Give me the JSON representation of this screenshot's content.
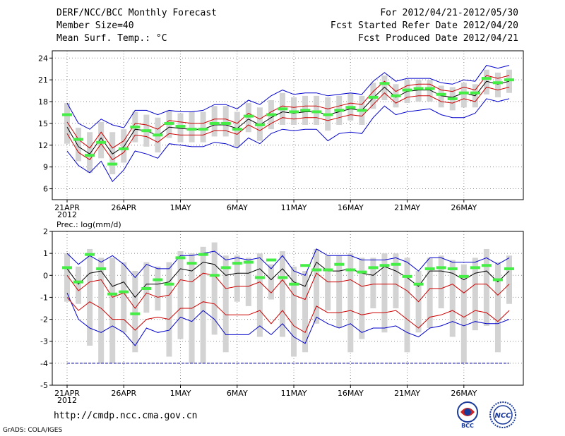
{
  "header": {
    "title_left_1": "DERF/NCC/BCC Monthly Forecast",
    "title_left_2": "Member Size=40",
    "title_left_3": "Mean Surf. Temp.: °C",
    "title_right_1": "For 2012/04/21-2012/05/30",
    "title_right_2": "Fcst Started Refer Date 2012/04/20",
    "title_right_3": "Fcst Produced Date 2012/04/21"
  },
  "footer": {
    "url": "http://cmdp.ncc.cma.gov.cn",
    "credit": "GrADS: COLA/IGES",
    "logo_left": "BCC",
    "logo_right": "NCC"
  },
  "colors": {
    "grid": "#888888",
    "box": "#d3d3d3",
    "mean": "#000000",
    "inner_band": "#cc0000",
    "outer_band": "#0000cc",
    "observed": "#44ee44",
    "ref_line": "#0000aa"
  },
  "chart_data": [
    {
      "type": "box",
      "title": "Mean Surf. Temp.: °C",
      "x": [
        1,
        2,
        3,
        4,
        5,
        6,
        7,
        8,
        9,
        10,
        11,
        12,
        13,
        14,
        15,
        16,
        17,
        18,
        19,
        20,
        21,
        22,
        23,
        24,
        25,
        26,
        27,
        28,
        29,
        30,
        31,
        32,
        33,
        34,
        35,
        36,
        37,
        38,
        39,
        40
      ],
      "x_tick_labels": [
        "21APR\n2012",
        "26APR",
        "1MAY",
        "6MAY",
        "11MAY",
        "16MAY",
        "21MAY",
        "26MAY"
      ],
      "x_tick_positions": [
        1,
        6,
        11,
        16,
        21,
        26,
        31,
        36
      ],
      "ylim": [
        4.5,
        25
      ],
      "y_ticks": [
        6,
        9,
        12,
        15,
        18,
        21,
        24
      ],
      "series": [
        {
          "name": "mean",
          "values": [
            14.5,
            11.8,
            10.8,
            13.0,
            10.8,
            11.8,
            14.2,
            14.0,
            13.3,
            14.5,
            14.3,
            14.2,
            14.2,
            14.8,
            14.8,
            14.3,
            15.6,
            14.8,
            15.8,
            16.6,
            16.4,
            16.6,
            16.6,
            16.2,
            16.6,
            17.0,
            16.8,
            18.5,
            20.0,
            18.6,
            19.4,
            19.6,
            19.6,
            18.8,
            18.6,
            19.2,
            18.8,
            20.8,
            20.4,
            20.8
          ]
        },
        {
          "name": "upper_inner",
          "values": [
            15.2,
            12.8,
            11.6,
            13.8,
            11.6,
            12.6,
            15.0,
            14.8,
            14.2,
            15.4,
            15.2,
            15.0,
            15.0,
            15.6,
            15.6,
            15.0,
            16.4,
            15.6,
            16.6,
            17.4,
            17.2,
            17.4,
            17.4,
            17.0,
            17.4,
            17.8,
            17.6,
            19.4,
            20.8,
            19.4,
            20.2,
            20.4,
            20.4,
            19.6,
            19.4,
            20.0,
            19.6,
            21.6,
            21.2,
            21.6
          ]
        },
        {
          "name": "lower_inner",
          "values": [
            13.6,
            11.0,
            10.0,
            12.2,
            10.0,
            11.0,
            13.4,
            13.2,
            12.4,
            13.6,
            13.4,
            13.4,
            13.4,
            14.0,
            14.0,
            13.5,
            14.8,
            14.0,
            15.0,
            15.8,
            15.6,
            15.8,
            15.8,
            15.4,
            15.8,
            16.2,
            16.0,
            17.6,
            19.2,
            17.8,
            18.6,
            18.8,
            18.8,
            18.0,
            17.8,
            18.4,
            18.0,
            20.0,
            19.6,
            20.0
          ]
        },
        {
          "name": "upper_outer",
          "values": [
            17.8,
            15.0,
            14.2,
            15.6,
            14.8,
            14.4,
            16.8,
            16.8,
            16.2,
            16.8,
            16.6,
            16.6,
            16.8,
            17.6,
            17.6,
            17.0,
            18.2,
            17.6,
            18.8,
            19.6,
            19.0,
            19.2,
            19.2,
            18.8,
            19.0,
            19.2,
            19.0,
            20.8,
            22.0,
            20.8,
            21.2,
            21.2,
            21.2,
            20.6,
            20.4,
            21.0,
            20.8,
            23.0,
            22.6,
            23.0
          ]
        },
        {
          "name": "lower_outer",
          "values": [
            11.2,
            9.2,
            8.2,
            9.8,
            7.0,
            8.6,
            11.2,
            10.8,
            10.2,
            12.2,
            12.0,
            11.8,
            11.8,
            12.4,
            12.2,
            11.6,
            13.0,
            12.2,
            13.6,
            14.2,
            14.0,
            14.2,
            14.2,
            12.6,
            13.6,
            13.8,
            13.6,
            15.8,
            17.4,
            16.2,
            16.6,
            16.8,
            17.0,
            16.2,
            15.8,
            15.8,
            16.4,
            18.4,
            18.0,
            18.4
          ]
        },
        {
          "name": "box_high",
          "values": [
            17.8,
            14.4,
            13.8,
            15.2,
            13.8,
            14.2,
            16.6,
            16.2,
            15.8,
            16.8,
            16.4,
            16.6,
            16.6,
            17.4,
            17.4,
            16.6,
            17.8,
            17.2,
            18.2,
            19.2,
            18.6,
            18.8,
            18.8,
            18.6,
            18.8,
            19.2,
            18.8,
            20.6,
            21.6,
            20.4,
            21.0,
            21.0,
            21.0,
            20.2,
            20.0,
            20.6,
            20.4,
            22.4,
            22.0,
            22.4
          ]
        },
        {
          "name": "box_low",
          "values": [
            12.2,
            9.8,
            8.2,
            10.2,
            8.0,
            9.6,
            12.4,
            11.8,
            11.0,
            13.0,
            12.4,
            12.4,
            12.4,
            13.2,
            13.2,
            11.8,
            13.8,
            12.6,
            14.2,
            14.8,
            14.8,
            14.8,
            14.8,
            14.0,
            14.8,
            15.4,
            14.8,
            17.0,
            18.2,
            17.2,
            17.8,
            18.0,
            18.0,
            17.2,
            16.8,
            17.2,
            17.2,
            19.0,
            18.6,
            19.2
          ]
        },
        {
          "name": "observed",
          "values": [
            16.2,
            12.8,
            10.6,
            12.4,
            9.4,
            11.5,
            14.5,
            14.0,
            13.4,
            15.0,
            14.6,
            14.2,
            14.2,
            15.0,
            15.0,
            14.2,
            16.0,
            14.8,
            16.2,
            17.0,
            16.6,
            16.8,
            16.6,
            16.2,
            16.8,
            17.2,
            16.8,
            18.6,
            20.5,
            18.8,
            19.6,
            19.8,
            19.8,
            19.0,
            18.4,
            19.2,
            19.2,
            21.2,
            20.6,
            21.0
          ]
        }
      ]
    },
    {
      "type": "box",
      "title": "Prec.: log(mm/d)",
      "x": [
        1,
        2,
        3,
        4,
        5,
        6,
        7,
        8,
        9,
        10,
        11,
        12,
        13,
        14,
        15,
        16,
        17,
        18,
        19,
        20,
        21,
        22,
        23,
        24,
        25,
        26,
        27,
        28,
        29,
        30,
        31,
        32,
        33,
        34,
        35,
        36,
        37,
        38,
        39,
        40
      ],
      "x_tick_labels": [
        "21APR\n2012",
        "26APR",
        "1MAY",
        "6MAY",
        "11MAY",
        "16MAY",
        "21MAY",
        "26MAY"
      ],
      "x_tick_positions": [
        1,
        6,
        11,
        16,
        21,
        26,
        31,
        36
      ],
      "ylim": [
        -5,
        2
      ],
      "y_ticks": [
        -5,
        -4,
        -3,
        -2,
        -1,
        0,
        1,
        2
      ],
      "reference_line": -4,
      "series": [
        {
          "name": "mean",
          "values": [
            0.3,
            -0.4,
            0.1,
            0.2,
            -0.5,
            -0.3,
            -1.0,
            -0.4,
            -0.4,
            -0.3,
            0.3,
            0.2,
            0.6,
            0.5,
            0.0,
            0.1,
            0.1,
            0.3,
            -0.2,
            0.3,
            -0.3,
            -0.5,
            0.6,
            0.2,
            0.2,
            0.3,
            0.1,
            0.0,
            0.4,
            0.2,
            -0.1,
            -0.5,
            0.2,
            0.2,
            0.1,
            -0.2,
            0.1,
            0.2,
            -0.3,
            0.2
          ]
        },
        {
          "name": "upper_inner",
          "values": [
            0.0,
            -0.7,
            -0.3,
            -0.2,
            -1.0,
            -0.8,
            -1.5,
            -0.8,
            -1.0,
            -0.9,
            -0.2,
            -0.3,
            0.1,
            0.0,
            -0.6,
            -0.5,
            -0.5,
            -0.3,
            -0.8,
            -0.2,
            -0.9,
            -1.1,
            0.1,
            -0.3,
            -0.3,
            -0.2,
            -0.5,
            -0.4,
            -0.4,
            -0.4,
            -0.7,
            -1.2,
            -0.6,
            -0.6,
            -0.4,
            -0.8,
            -0.4,
            -0.4,
            -0.9,
            -0.4
          ]
        },
        {
          "name": "lower_inner",
          "values": [
            -1.0,
            -1.6,
            -1.2,
            -1.5,
            -2.0,
            -2.0,
            -2.5,
            -2.0,
            -1.9,
            -2.0,
            -1.5,
            -1.5,
            -1.2,
            -1.3,
            -1.8,
            -1.8,
            -1.8,
            -1.6,
            -2.2,
            -1.6,
            -2.3,
            -2.6,
            -1.4,
            -1.7,
            -1.7,
            -1.6,
            -1.8,
            -1.7,
            -1.7,
            -1.6,
            -2.0,
            -2.4,
            -1.9,
            -1.8,
            -1.6,
            -1.9,
            -1.6,
            -1.7,
            -2.1,
            -1.6
          ]
        },
        {
          "name": "lower_outer",
          "values": [
            -0.8,
            -2.0,
            -2.4,
            -2.6,
            -2.3,
            -2.6,
            -3.2,
            -2.4,
            -2.6,
            -2.5,
            -1.9,
            -2.1,
            -1.6,
            -2.0,
            -2.7,
            -2.7,
            -2.7,
            -2.3,
            -2.7,
            -2.2,
            -2.8,
            -3.1,
            -1.9,
            -2.2,
            -2.4,
            -2.2,
            -2.6,
            -2.4,
            -2.4,
            -2.3,
            -2.6,
            -2.8,
            -2.4,
            -2.3,
            -2.1,
            -2.3,
            -2.1,
            -2.2,
            -2.2,
            -2.0
          ]
        },
        {
          "name": "upper_outer",
          "values": [
            1.0,
            0.5,
            0.9,
            0.6,
            0.9,
            0.5,
            -0.1,
            0.5,
            0.3,
            0.3,
            0.9,
            0.9,
            1.0,
            1.1,
            0.7,
            0.8,
            0.7,
            0.8,
            0.3,
            0.9,
            0.2,
            0.0,
            1.2,
            0.9,
            0.9,
            0.9,
            0.7,
            0.7,
            0.7,
            0.8,
            0.6,
            0.2,
            0.8,
            0.8,
            0.6,
            0.6,
            0.6,
            0.8,
            0.5,
            0.8
          ]
        },
        {
          "name": "box_high",
          "values": [
            1.0,
            0.4,
            1.2,
            0.8,
            0.8,
            0.6,
            0.2,
            0.6,
            0.4,
            0.6,
            1.1,
            1.0,
            1.3,
            1.5,
            0.9,
            0.9,
            0.8,
            1.0,
            0.5,
            1.1,
            0.4,
            0.2,
            1.2,
            0.9,
            0.9,
            1.0,
            0.8,
            0.8,
            1.0,
            1.0,
            0.8,
            0.2,
            0.8,
            0.9,
            0.7,
            0.5,
            0.8,
            1.2,
            0.6,
            0.9
          ]
        },
        {
          "name": "box_low",
          "values": [
            -1.2,
            -1.3,
            -3.2,
            -4.0,
            -4.0,
            -2.6,
            -3.5,
            -1.7,
            -1.6,
            -3.7,
            -2.9,
            -4.0,
            -4.0,
            -2.7,
            -3.5,
            -1.2,
            -1.4,
            -2.8,
            -1.1,
            -2.8,
            -3.7,
            -3.5,
            -2.2,
            -1.6,
            -2.4,
            -3.5,
            -2.9,
            -1.5,
            -2.6,
            -1.5,
            -3.5,
            -2.6,
            -2.4,
            -1.5,
            -2.8,
            -4.0,
            -2.5,
            -2.3,
            -3.5,
            -1.3
          ]
        },
        {
          "name": "observed",
          "values": [
            0.35,
            -0.3,
            0.95,
            0.3,
            -0.85,
            -0.75,
            -1.75,
            -0.6,
            -0.2,
            -0.4,
            0.8,
            0.55,
            0.95,
            0.0,
            0.35,
            0.55,
            0.6,
            -0.1,
            0.7,
            -0.1,
            -0.4,
            0.45,
            0.25,
            0.25,
            0.5,
            0.25,
            0.15,
            0.35,
            0.45,
            0.5,
            -0.05,
            -0.4,
            0.3,
            0.35,
            0.3,
            -0.05,
            0.35,
            0.45,
            -0.2,
            0.3
          ]
        }
      ]
    }
  ]
}
